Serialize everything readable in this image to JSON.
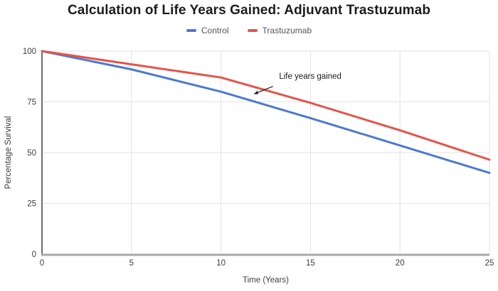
{
  "chart_data": {
    "type": "line",
    "title": "Calculation of Life Years Gained: Adjuvant Trastuzumab",
    "xlabel": "Time (Years)",
    "ylabel": "Percentage Survival",
    "x": [
      0,
      5,
      10,
      15,
      20,
      25
    ],
    "x_ticks": [
      "0",
      "5",
      "10",
      "15",
      "20",
      "25"
    ],
    "y_ticks": [
      "0",
      "25",
      "50",
      "75",
      "100"
    ],
    "y_tick_values": [
      0,
      25,
      50,
      75,
      100
    ],
    "xlim": [
      0,
      25
    ],
    "ylim": [
      0,
      100
    ],
    "grid": true,
    "legend_position": "top",
    "series": [
      {
        "name": "Control",
        "color": "#4a7ad2",
        "values": [
          100,
          91,
          80,
          67,
          53.5,
          40
        ]
      },
      {
        "name": "Trastuzumab",
        "color": "#e6544a",
        "values": [
          100,
          93.5,
          87,
          74.5,
          61,
          46.5
        ]
      }
    ],
    "annotation": {
      "text": "Life years gained",
      "text_x": 13.25,
      "text_y": 87.7,
      "arrow": {
        "x1": 12.9,
        "y1": 82.6,
        "x2": 11.85,
        "y2": 78.9
      },
      "color": "#1a1a1a"
    },
    "style": {
      "grid_color": "#e3e3e3",
      "y_axis_line_color": "#6f6f6f",
      "x_baseline_color": "#a9a9a9",
      "tick_label_color": "#3d3d3d",
      "background": "#ffffff"
    }
  }
}
